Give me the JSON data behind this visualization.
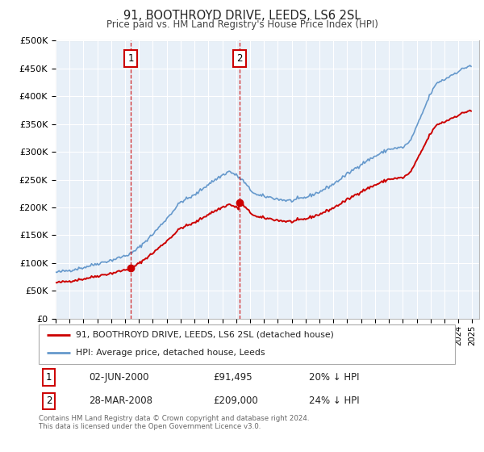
{
  "title": "91, BOOTHROYD DRIVE, LEEDS, LS6 2SL",
  "subtitle": "Price paid vs. HM Land Registry's House Price Index (HPI)",
  "ylabel_ticks": [
    "£0",
    "£50K",
    "£100K",
    "£150K",
    "£200K",
    "£250K",
    "£300K",
    "£350K",
    "£400K",
    "£450K",
    "£500K"
  ],
  "ylim": [
    0,
    500000
  ],
  "ytick_vals": [
    0,
    50000,
    100000,
    150000,
    200000,
    250000,
    300000,
    350000,
    400000,
    450000,
    500000
  ],
  "xmin": 1995.0,
  "xmax": 2025.5,
  "purchase1_x": 2000.42,
  "purchase1_y": 91495,
  "purchase2_x": 2008.23,
  "purchase2_y": 209000,
  "legend_line1": "91, BOOTHROYD DRIVE, LEEDS, LS6 2SL (detached house)",
  "legend_line2": "HPI: Average price, detached house, Leeds",
  "table_row1_num": "1",
  "table_row1_date": "02-JUN-2000",
  "table_row1_price": "£91,495",
  "table_row1_hpi": "20% ↓ HPI",
  "table_row2_num": "2",
  "table_row2_date": "28-MAR-2008",
  "table_row2_price": "£209,000",
  "table_row2_hpi": "24% ↓ HPI",
  "footer": "Contains HM Land Registry data © Crown copyright and database right 2024.\nThis data is licensed under the Open Government Licence v3.0.",
  "red_color": "#cc0000",
  "blue_color": "#6699cc",
  "background_plot": "#e8f0f8",
  "grid_color": "#ffffff",
  "hpi_anchors_x": [
    1995.0,
    1996.0,
    1997.0,
    1998.0,
    1999.0,
    2000.0,
    2000.5,
    2001.0,
    2002.0,
    2003.0,
    2004.0,
    2005.0,
    2006.0,
    2007.0,
    2007.5,
    2008.0,
    2008.5,
    2009.0,
    2009.5,
    2010.0,
    2010.5,
    2011.0,
    2011.5,
    2012.0,
    2013.0,
    2014.0,
    2015.0,
    2016.0,
    2017.0,
    2018.0,
    2019.0,
    2020.0,
    2020.5,
    2021.0,
    2021.5,
    2022.0,
    2022.5,
    2023.0,
    2023.5,
    2024.0,
    2024.8
  ],
  "hpi_anchors_y": [
    83000,
    87000,
    92000,
    99000,
    105000,
    113000,
    118000,
    128000,
    152000,
    180000,
    210000,
    222000,
    242000,
    258000,
    265000,
    258000,
    248000,
    232000,
    222000,
    220000,
    218000,
    215000,
    213000,
    212000,
    218000,
    228000,
    242000,
    260000,
    278000,
    292000,
    305000,
    308000,
    318000,
    345000,
    375000,
    405000,
    425000,
    430000,
    438000,
    445000,
    455000
  ]
}
